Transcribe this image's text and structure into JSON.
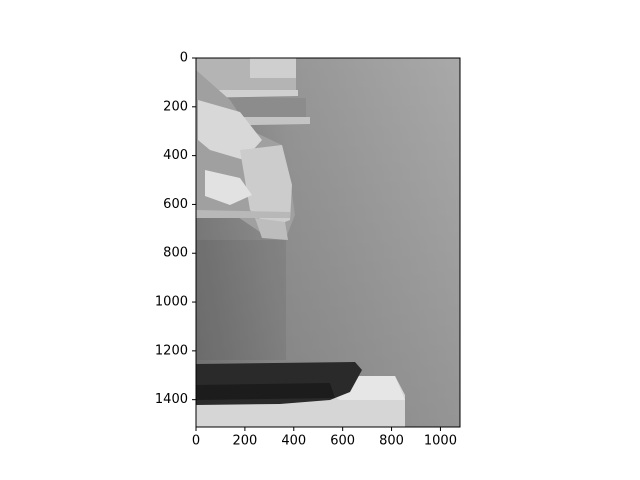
{
  "chart_data": {
    "type": "image",
    "xlim": [
      0,
      1080
    ],
    "ylim": [
      1512,
      0
    ],
    "xticks": [
      0,
      200,
      400,
      600,
      800,
      1000
    ],
    "yticks": [
      0,
      200,
      400,
      600,
      800,
      1000,
      1200,
      1400
    ]
  }
}
